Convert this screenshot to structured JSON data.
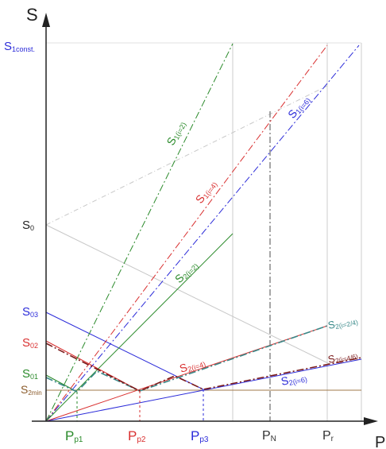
{
  "axes": {
    "y_axis_label": "S",
    "x_axis_label": "P"
  },
  "y_tick_labels": {
    "s1const": {
      "text": "S",
      "sub": "1const.",
      "color": "#2b2bd9"
    },
    "s0": {
      "text": "S",
      "sub": "0",
      "color": "#222222"
    },
    "s03": {
      "text": "S",
      "sub": "03",
      "color": "#2b2bd9"
    },
    "s02": {
      "text": "S",
      "sub": "02",
      "color": "#d93030"
    },
    "s01": {
      "text": "S",
      "sub": "01",
      "color": "#2a8a2a"
    },
    "s2min": {
      "text": "S",
      "sub": "2min",
      "color": "#8a5a2a"
    }
  },
  "x_tick_labels": {
    "pp1": {
      "text": "P",
      "sub": "p1",
      "color": "#2a8a2a"
    },
    "pp2": {
      "text": "P",
      "sub": "p2",
      "color": "#d93030"
    },
    "pp3": {
      "text": "P",
      "sub": "p3",
      "color": "#2b2bd9"
    },
    "pn": {
      "text": "P",
      "sub": "N",
      "color": "#333333"
    },
    "pr": {
      "text": "P",
      "sub": "r",
      "color": "#333333"
    }
  },
  "curve_labels": {
    "s1_i2": {
      "text": "S",
      "sub": "1(i=2)",
      "color": "#2a8a2a"
    },
    "s1_i4": {
      "text": "S",
      "sub": "1(i=4)",
      "color": "#d93030"
    },
    "s1_i6": {
      "text": "S",
      "sub": "1(i=6)",
      "color": "#2b2bd9"
    },
    "s2_i2": {
      "text": "S",
      "sub": "2(i=2)",
      "color": "#2a8a2a"
    },
    "s2_i4": {
      "text": "S",
      "sub": "2(i=4)",
      "color": "#d93030"
    },
    "s2_i6": {
      "text": "S",
      "sub": "2(i=6)",
      "color": "#2b2bd9"
    },
    "s2_i24": {
      "text": "S",
      "sub": "2(i=2/4)",
      "color": "#3a8a8a"
    },
    "s2_i46": {
      "text": "S",
      "sub": "2(i=4/6)",
      "color": "#7a1a1a"
    }
  },
  "colors": {
    "green": "#2a8a2a",
    "red": "#d93030",
    "blue": "#2b2bd9",
    "teal": "#3a8a8a",
    "dark_red": "#7a1a1a",
    "brown": "#8a5a2a",
    "axis": "#222222",
    "grid": "#cccccc"
  }
}
